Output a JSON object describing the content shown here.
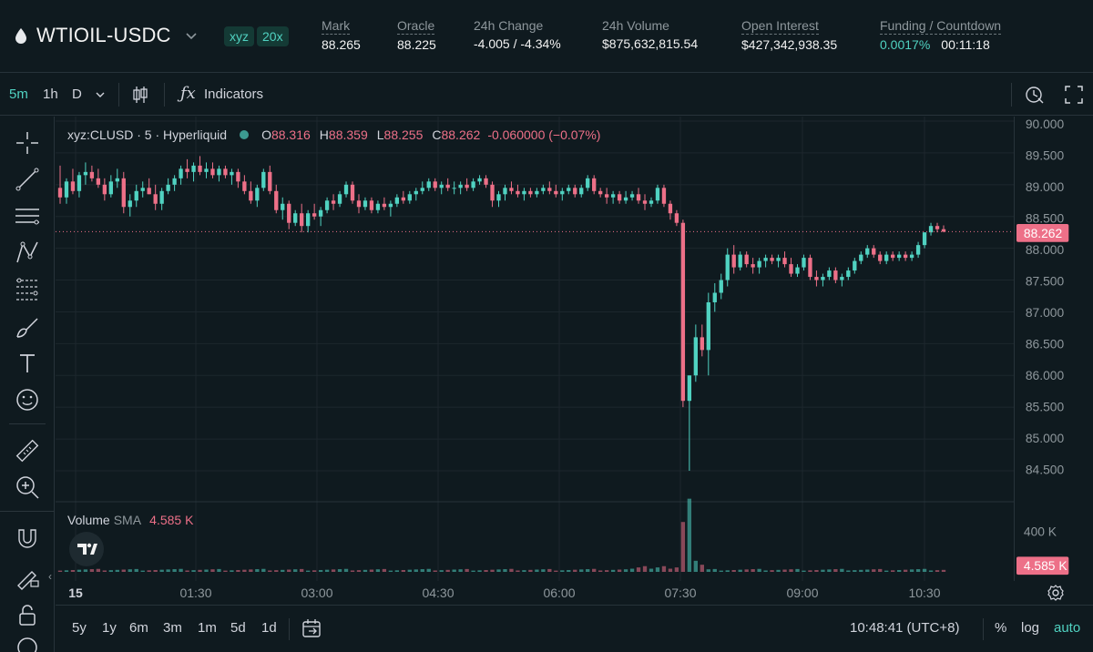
{
  "header": {
    "pair": "WTIOIL-USDC",
    "badge_exchange": "xyz",
    "badge_leverage": "20x",
    "stats": {
      "mark_label": "Mark",
      "mark_value": "88.265",
      "oracle_label": "Oracle",
      "oracle_value": "88.225",
      "change_label": "24h Change",
      "change_value": "-4.005 / -4.34%",
      "volume_label": "24h Volume",
      "volume_value": "$875,632,815.54",
      "oi_label": "Open Interest",
      "oi_value": "$427,342,938.35",
      "funding_label": "Funding / Countdown",
      "funding_value": "0.0017%",
      "countdown_value": "00:11:18"
    }
  },
  "toolbar": {
    "interval_5m": "5m",
    "interval_1h": "1h",
    "interval_d": "D",
    "indicators_label": "Indicators"
  },
  "legend": {
    "symbol": "xyz:CLUSD · 5 · Hyperliquid",
    "o_label": "O",
    "o_value": "88.316",
    "h_label": "H",
    "h_value": "88.359",
    "l_label": "L",
    "l_value": "88.255",
    "c_label": "C",
    "c_value": "88.262",
    "change": "-0.060000 (−0.07%)"
  },
  "volume_legend": {
    "label": "Volume",
    "sma": "SMA",
    "value": "4.585 K"
  },
  "price_axis": {
    "ticks": [
      "90.000",
      "89.500",
      "89.000",
      "88.500",
      "88.000",
      "87.500",
      "87.000",
      "86.500",
      "86.000",
      "85.500",
      "85.000",
      "84.500"
    ],
    "last_price": "88.262",
    "vol_ticks": [
      "400 K"
    ],
    "vol_last": "4.585 K"
  },
  "time_axis": [
    "15",
    "01:30",
    "03:00",
    "04:30",
    "06:00",
    "07:30",
    "09:00",
    "10:30"
  ],
  "bottom": {
    "ranges": [
      "5y",
      "1y",
      "6m",
      "3m",
      "1m",
      "5d",
      "1d"
    ],
    "clock": "10:48:41 (UTC+8)",
    "pct": "%",
    "log": "log",
    "auto": "auto"
  },
  "colors": {
    "up": "#50d2c1",
    "down": "#ed7088",
    "accent": "#50d2c1"
  },
  "chart_data": {
    "type": "candlestick",
    "ylim": [
      84.3,
      90.1
    ],
    "last_price": 88.262,
    "candles_ohlc": [
      [
        88.95,
        89.3,
        88.7,
        88.8
      ],
      [
        88.8,
        89.1,
        88.7,
        89.05
      ],
      [
        89.05,
        89.25,
        88.85,
        88.9
      ],
      [
        88.9,
        89.2,
        88.8,
        89.15
      ],
      [
        89.15,
        89.35,
        89.0,
        89.2
      ],
      [
        89.2,
        89.3,
        89.05,
        89.1
      ],
      [
        89.1,
        89.25,
        88.95,
        89.0
      ],
      [
        89.0,
        89.1,
        88.75,
        88.85
      ],
      [
        88.85,
        89.15,
        88.8,
        89.05
      ],
      [
        89.05,
        89.25,
        88.95,
        89.1
      ],
      [
        89.1,
        89.2,
        88.55,
        88.65
      ],
      [
        88.65,
        88.85,
        88.5,
        88.75
      ],
      [
        88.75,
        89.0,
        88.65,
        88.9
      ],
      [
        88.9,
        89.05,
        88.8,
        88.95
      ],
      [
        88.95,
        89.1,
        88.85,
        88.85
      ],
      [
        88.85,
        89.0,
        88.6,
        88.7
      ],
      [
        88.7,
        88.95,
        88.6,
        88.9
      ],
      [
        88.9,
        89.1,
        88.85,
        89.0
      ],
      [
        89.0,
        89.15,
        88.9,
        89.1
      ],
      [
        89.1,
        89.3,
        89.0,
        89.25
      ],
      [
        89.25,
        89.4,
        89.1,
        89.2
      ],
      [
        89.2,
        89.35,
        89.05,
        89.3
      ],
      [
        89.3,
        89.45,
        89.15,
        89.2
      ],
      [
        89.2,
        89.35,
        89.1,
        89.25
      ],
      [
        89.25,
        89.35,
        89.1,
        89.15
      ],
      [
        89.15,
        89.3,
        89.05,
        89.25
      ],
      [
        89.25,
        89.3,
        89.1,
        89.15
      ],
      [
        89.15,
        89.25,
        89.0,
        89.2
      ],
      [
        89.2,
        89.25,
        88.95,
        89.05
      ],
      [
        89.05,
        89.15,
        88.85,
        88.9
      ],
      [
        88.9,
        89.05,
        88.7,
        88.75
      ],
      [
        88.75,
        89.0,
        88.65,
        88.95
      ],
      [
        88.95,
        89.25,
        88.9,
        89.2
      ],
      [
        89.2,
        89.3,
        88.85,
        88.9
      ],
      [
        88.9,
        89.0,
        88.55,
        88.6
      ],
      [
        88.6,
        88.8,
        88.45,
        88.7
      ],
      [
        88.7,
        88.75,
        88.3,
        88.4
      ],
      [
        88.4,
        88.6,
        88.35,
        88.55
      ],
      [
        88.55,
        88.7,
        88.25,
        88.35
      ],
      [
        88.35,
        88.6,
        88.25,
        88.55
      ],
      [
        88.55,
        88.7,
        88.45,
        88.5
      ],
      [
        88.5,
        88.65,
        88.35,
        88.6
      ],
      [
        88.6,
        88.8,
        88.55,
        88.75
      ],
      [
        88.75,
        88.85,
        88.6,
        88.7
      ],
      [
        88.7,
        88.9,
        88.65,
        88.85
      ],
      [
        88.85,
        89.05,
        88.8,
        89.0
      ],
      [
        89.0,
        89.05,
        88.7,
        88.75
      ],
      [
        88.75,
        88.85,
        88.55,
        88.65
      ],
      [
        88.65,
        88.8,
        88.6,
        88.75
      ],
      [
        88.75,
        88.8,
        88.55,
        88.6
      ],
      [
        88.6,
        88.75,
        88.55,
        88.7
      ],
      [
        88.7,
        88.8,
        88.6,
        88.65
      ],
      [
        88.65,
        88.75,
        88.5,
        88.7
      ],
      [
        88.7,
        88.85,
        88.65,
        88.8
      ],
      [
        88.8,
        88.9,
        88.7,
        88.75
      ],
      [
        88.75,
        88.9,
        88.7,
        88.85
      ],
      [
        88.85,
        88.95,
        88.75,
        88.9
      ],
      [
        88.9,
        89.05,
        88.85,
        88.95
      ],
      [
        88.95,
        89.1,
        88.9,
        89.05
      ],
      [
        89.05,
        89.1,
        88.9,
        88.95
      ],
      [
        88.95,
        89.05,
        88.85,
        89.0
      ],
      [
        89.0,
        89.1,
        88.9,
        88.95
      ],
      [
        88.95,
        89.05,
        88.85,
        88.95
      ],
      [
        88.95,
        89.05,
        88.85,
        89.0
      ],
      [
        89.0,
        89.1,
        88.9,
        88.95
      ],
      [
        88.95,
        89.1,
        88.9,
        89.05
      ],
      [
        89.05,
        89.15,
        89.0,
        89.1
      ],
      [
        89.1,
        89.15,
        88.95,
        89.0
      ],
      [
        89.0,
        89.05,
        88.65,
        88.75
      ],
      [
        88.75,
        88.9,
        88.65,
        88.85
      ],
      [
        88.85,
        89.0,
        88.75,
        88.95
      ],
      [
        88.95,
        89.05,
        88.85,
        88.9
      ],
      [
        88.9,
        89.0,
        88.8,
        88.85
      ],
      [
        88.85,
        88.95,
        88.75,
        88.9
      ],
      [
        88.9,
        88.95,
        88.8,
        88.85
      ],
      [
        88.85,
        88.95,
        88.8,
        88.9
      ],
      [
        88.9,
        89.0,
        88.85,
        88.95
      ],
      [
        88.95,
        89.05,
        88.85,
        88.9
      ],
      [
        88.9,
        89.0,
        88.8,
        88.85
      ],
      [
        88.85,
        88.95,
        88.75,
        88.9
      ],
      [
        88.9,
        89.0,
        88.85,
        88.95
      ],
      [
        88.95,
        89.0,
        88.8,
        88.85
      ],
      [
        88.85,
        89.0,
        88.8,
        88.95
      ],
      [
        88.95,
        89.15,
        88.9,
        89.1
      ],
      [
        89.1,
        89.15,
        88.85,
        88.9
      ],
      [
        88.9,
        88.95,
        88.8,
        88.85
      ],
      [
        88.85,
        88.95,
        88.7,
        88.8
      ],
      [
        88.8,
        88.9,
        88.7,
        88.85
      ],
      [
        88.85,
        88.9,
        88.7,
        88.75
      ],
      [
        88.75,
        88.9,
        88.7,
        88.8
      ],
      [
        88.8,
        88.9,
        88.75,
        88.85
      ],
      [
        88.85,
        88.95,
        88.7,
        88.75
      ],
      [
        88.75,
        88.85,
        88.6,
        88.7
      ],
      [
        88.7,
        88.8,
        88.65,
        88.75
      ],
      [
        88.75,
        89.0,
        88.7,
        88.95
      ],
      [
        88.95,
        89.0,
        88.65,
        88.7
      ],
      [
        88.7,
        88.75,
        88.45,
        88.55
      ],
      [
        88.55,
        88.6,
        88.35,
        88.4
      ],
      [
        88.4,
        88.45,
        85.5,
        85.6
      ],
      [
        85.6,
        86.0,
        84.5,
        86.0
      ],
      [
        86.0,
        86.8,
        85.9,
        86.6
      ],
      [
        86.6,
        86.8,
        86.3,
        86.4
      ],
      [
        86.4,
        87.3,
        86.0,
        87.15
      ],
      [
        87.15,
        87.45,
        87.0,
        87.3
      ],
      [
        87.3,
        87.6,
        87.2,
        87.5
      ],
      [
        87.5,
        88.0,
        87.4,
        87.9
      ],
      [
        87.9,
        88.05,
        87.6,
        87.7
      ],
      [
        87.7,
        87.95,
        87.65,
        87.9
      ],
      [
        87.9,
        87.95,
        87.7,
        87.75
      ],
      [
        87.75,
        87.85,
        87.6,
        87.7
      ],
      [
        87.7,
        87.85,
        87.6,
        87.8
      ],
      [
        87.8,
        87.9,
        87.7,
        87.85
      ],
      [
        87.85,
        87.9,
        87.75,
        87.8
      ],
      [
        87.8,
        87.9,
        87.7,
        87.85
      ],
      [
        87.85,
        87.95,
        87.7,
        87.75
      ],
      [
        87.75,
        87.85,
        87.55,
        87.6
      ],
      [
        87.6,
        87.75,
        87.55,
        87.7
      ],
      [
        87.7,
        87.9,
        87.65,
        87.85
      ],
      [
        87.85,
        87.9,
        87.5,
        87.55
      ],
      [
        87.55,
        87.65,
        87.4,
        87.5
      ],
      [
        87.5,
        87.6,
        87.4,
        87.55
      ],
      [
        87.55,
        87.7,
        87.5,
        87.65
      ],
      [
        87.65,
        87.7,
        87.45,
        87.5
      ],
      [
        87.5,
        87.6,
        87.4,
        87.55
      ],
      [
        87.55,
        87.7,
        87.5,
        87.65
      ],
      [
        87.65,
        87.85,
        87.6,
        87.8
      ],
      [
        87.8,
        87.95,
        87.75,
        87.9
      ],
      [
        87.9,
        88.05,
        87.85,
        88.0
      ],
      [
        88.0,
        88.05,
        87.85,
        87.9
      ],
      [
        87.9,
        87.95,
        87.75,
        87.8
      ],
      [
        87.8,
        87.95,
        87.75,
        87.9
      ],
      [
        87.9,
        87.95,
        87.8,
        87.85
      ],
      [
        87.85,
        87.95,
        87.8,
        87.9
      ],
      [
        87.9,
        87.95,
        87.8,
        87.85
      ],
      [
        87.85,
        87.95,
        87.8,
        87.9
      ],
      [
        87.9,
        88.1,
        87.85,
        88.05
      ],
      [
        88.05,
        88.25,
        88.0,
        88.25
      ],
      [
        88.25,
        88.4,
        88.2,
        88.35
      ],
      [
        88.35,
        88.4,
        88.25,
        88.3
      ],
      [
        88.3,
        88.36,
        88.25,
        88.262
      ]
    ],
    "volume": {
      "sma": 4585,
      "note": "spike around 07:30 (~440K)",
      "ylim": [
        0,
        460000
      ]
    },
    "x_ticks": [
      "15",
      "01:30",
      "03:00",
      "04:30",
      "06:00",
      "07:30",
      "09:00",
      "10:30"
    ],
    "y_ticks": [
      90.0,
      89.5,
      89.0,
      88.5,
      88.0,
      87.5,
      87.0,
      86.5,
      86.0,
      85.5,
      85.0,
      84.5
    ]
  }
}
